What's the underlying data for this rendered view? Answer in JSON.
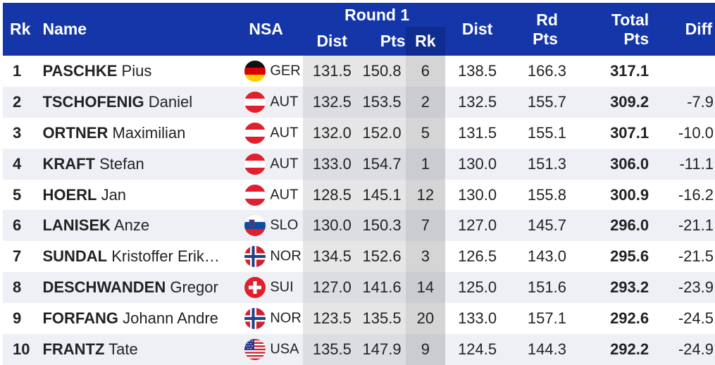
{
  "header": {
    "rk": "Rk",
    "name": "Name",
    "nsa": "NSA",
    "round1": "Round 1",
    "r1_dist": "Dist",
    "r1_pts": "Pts",
    "r1_rk": "Rk",
    "dist": "Dist",
    "rd_pts_line1": "Rd",
    "rd_pts_line2": "Pts",
    "total_pts_line1": "Total",
    "total_pts_line2": "Pts",
    "diff": "Diff"
  },
  "rows": [
    {
      "rank": "1",
      "surname": "PASCHKE",
      "firstname": "Pius",
      "flag": "germany-flag-icon",
      "nsa": "GER",
      "r1_dist": "131.5",
      "r1_pts": "150.8",
      "r1_rk": "6",
      "dist": "138.5",
      "rd_pts": "166.3",
      "total": "317.1",
      "diff": ""
    },
    {
      "rank": "2",
      "surname": "TSCHOFENIG",
      "firstname": "Daniel",
      "flag": "austria-flag-icon",
      "nsa": "AUT",
      "r1_dist": "132.5",
      "r1_pts": "153.5",
      "r1_rk": "2",
      "dist": "132.5",
      "rd_pts": "155.7",
      "total": "309.2",
      "diff": "-7.9"
    },
    {
      "rank": "3",
      "surname": "ORTNER",
      "firstname": "Maximilian",
      "flag": "austria-flag-icon",
      "nsa": "AUT",
      "r1_dist": "132.0",
      "r1_pts": "152.0",
      "r1_rk": "5",
      "dist": "131.5",
      "rd_pts": "155.1",
      "total": "307.1",
      "diff": "-10.0"
    },
    {
      "rank": "4",
      "surname": "KRAFT",
      "firstname": "Stefan",
      "flag": "austria-flag-icon",
      "nsa": "AUT",
      "r1_dist": "133.0",
      "r1_pts": "154.7",
      "r1_rk": "1",
      "dist": "130.0",
      "rd_pts": "151.3",
      "total": "306.0",
      "diff": "-11.1"
    },
    {
      "rank": "5",
      "surname": "HOERL",
      "firstname": "Jan",
      "flag": "austria-flag-icon",
      "nsa": "AUT",
      "r1_dist": "128.5",
      "r1_pts": "145.1",
      "r1_rk": "12",
      "dist": "130.0",
      "rd_pts": "155.8",
      "total": "300.9",
      "diff": "-16.2"
    },
    {
      "rank": "6",
      "surname": "LANISEK",
      "firstname": "Anze",
      "flag": "slovenia-flag-icon",
      "nsa": "SLO",
      "r1_dist": "130.0",
      "r1_pts": "150.3",
      "r1_rk": "7",
      "dist": "127.0",
      "rd_pts": "145.7",
      "total": "296.0",
      "diff": "-21.1"
    },
    {
      "rank": "7",
      "surname": "SUNDAL",
      "firstname": "Kristoffer Erik…",
      "flag": "norway-flag-icon",
      "nsa": "NOR",
      "r1_dist": "134.5",
      "r1_pts": "152.6",
      "r1_rk": "3",
      "dist": "126.5",
      "rd_pts": "143.0",
      "total": "295.6",
      "diff": "-21.5"
    },
    {
      "rank": "8",
      "surname": "DESCHWANDEN",
      "firstname": "Gregor",
      "flag": "switzerland-flag-icon",
      "nsa": "SUI",
      "r1_dist": "127.0",
      "r1_pts": "141.6",
      "r1_rk": "14",
      "dist": "125.0",
      "rd_pts": "151.6",
      "total": "293.2",
      "diff": "-23.9"
    },
    {
      "rank": "9",
      "surname": "FORFANG",
      "firstname": "Johann Andre",
      "flag": "norway-flag-icon",
      "nsa": "NOR",
      "r1_dist": "123.5",
      "r1_pts": "135.5",
      "r1_rk": "20",
      "dist": "133.0",
      "rd_pts": "157.1",
      "total": "292.6",
      "diff": "-24.5"
    },
    {
      "rank": "10",
      "surname": "FRANTZ",
      "firstname": "Tate",
      "flag": "usa-flag-icon",
      "nsa": "USA",
      "r1_dist": "135.5",
      "r1_pts": "147.9",
      "r1_rk": "9",
      "dist": "124.5",
      "rd_pts": "144.3",
      "total": "292.2",
      "diff": "-24.9"
    }
  ]
}
